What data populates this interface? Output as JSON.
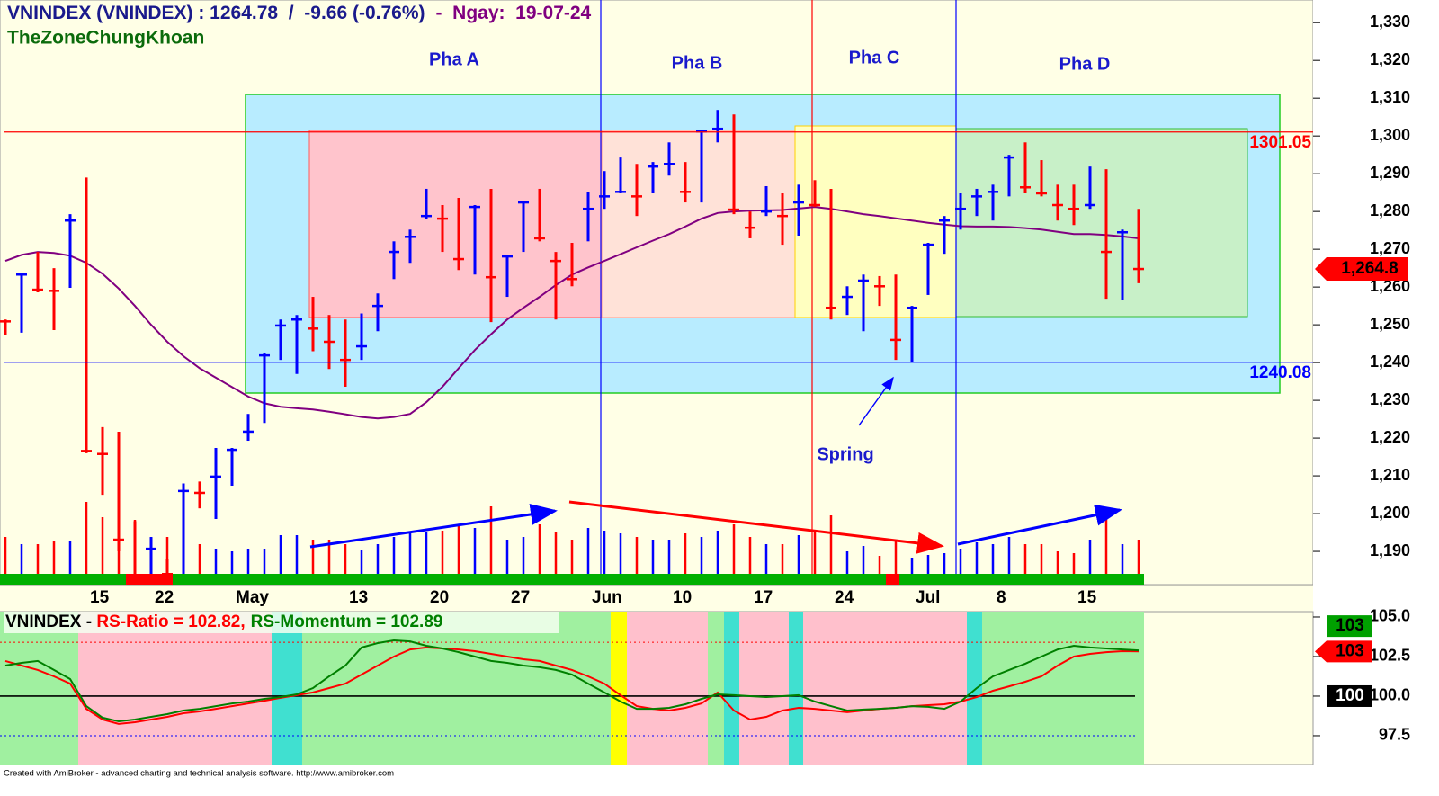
{
  "chart_data": [
    {
      "type": "ohlc",
      "title": "VNINDEX (VNINDEX) : 1264.78  /  -9.66 (-0.76%)",
      "title_date": "-  Ngay:  19-07-24",
      "subtitle": "TheZoneChungKhoan",
      "categories": [
        null,
        null,
        null,
        null,
        null,
        "15",
        null,
        null,
        null,
        "22",
        null,
        null,
        null,
        null,
        "May",
        null,
        null,
        null,
        null,
        null,
        null,
        "13",
        null,
        null,
        null,
        null,
        "20",
        null,
        null,
        null,
        null,
        "27",
        null,
        null,
        null,
        null,
        "Jun",
        null,
        null,
        null,
        null,
        "10",
        null,
        null,
        null,
        null,
        "17",
        null,
        null,
        null,
        null,
        "24",
        null,
        null,
        null,
        null,
        "Jul",
        null,
        null,
        null,
        null,
        "8",
        null,
        null,
        null,
        null,
        "15",
        null,
        null,
        null,
        null
      ],
      "high": [
        1251.4,
        1263.3,
        1269.3,
        1265.0,
        1279.3,
        1289.0,
        1222.9,
        1221.7,
        1198.0,
        1193.8,
        1188.0,
        1208.0,
        1208.5,
        1217.4,
        1217.4,
        1226.4,
        1242.4,
        1251.4,
        1252.6,
        1257.4,
        1252.6,
        1251.4,
        1253.0,
        1258.3,
        1272.1,
        1275.2,
        1286.0,
        1281.7,
        1283.6,
        1281.7,
        1286.0,
        1268.1,
        1282.4,
        1286.0,
        1269.3,
        1271.7,
        1285.2,
        1290.7,
        1294.3,
        1292.6,
        1293.1,
        1298.3,
        1293.1,
        1301.4,
        1306.9,
        1305.7,
        1280.0,
        1286.7,
        1284.8,
        1287.1,
        1288.3,
        1286.0,
        1260.2,
        1263.3,
        1262.9,
        1263.3,
        1255.0,
        1271.7,
        1278.8,
        1284.8,
        1286.0,
        1287.1,
        1295.0,
        1298.3,
        1293.6,
        1287.1,
        1287.1,
        1291.9,
        1291.2,
        1275.2,
        1280.7
      ],
      "low": [
        1247.4,
        1247.9,
        1258.6,
        1248.6,
        1259.8,
        1216.0,
        1205.0,
        1190.0,
        1170.0,
        1175.0,
        1172.0,
        1183.0,
        1201.4,
        1198.6,
        1207.4,
        1219.3,
        1224.0,
        1240.7,
        1237.0,
        1243.0,
        1238.3,
        1233.6,
        1240.7,
        1248.3,
        1262.1,
        1266.4,
        1278.1,
        1269.3,
        1264.5,
        1263.3,
        1250.7,
        1257.4,
        1269.3,
        1272.1,
        1251.4,
        1260.2,
        1272.1,
        1280.7,
        1284.8,
        1278.8,
        1284.8,
        1289.5,
        1282.4,
        1282.4,
        1298.3,
        1279.3,
        1272.9,
        1278.8,
        1271.2,
        1273.6,
        1281.2,
        1251.4,
        1252.6,
        1248.3,
        1255.0,
        1240.7,
        1240.2,
        1257.9,
        1268.8,
        1275.2,
        1278.8,
        1277.6,
        1284.0,
        1284.8,
        1284.0,
        1277.6,
        1276.4,
        1280.7,
        1256.9,
        1256.7,
        1261.0
      ],
      "close": [
        1250.9,
        1263.3,
        1259.3,
        1259.0,
        1277.6,
        1216.6,
        1215.8,
        1193.1,
        1174.9,
        1190.7,
        1184.0,
        1206.0,
        1205.5,
        1209.8,
        1216.9,
        1221.7,
        1241.9,
        1249.8,
        1251.4,
        1249.0,
        1245.5,
        1240.7,
        1244.3,
        1255.0,
        1269.3,
        1273.3,
        1278.8,
        1278.1,
        1267.4,
        1281.2,
        1262.6,
        1268.1,
        1282.4,
        1272.9,
        1266.9,
        1262.1,
        1280.7,
        1284.0,
        1285.2,
        1284.0,
        1291.9,
        1292.6,
        1285.2,
        1301.2,
        1301.9,
        1280.5,
        1275.7,
        1280.0,
        1278.8,
        1282.4,
        1281.7,
        1254.5,
        1257.4,
        1261.7,
        1260.2,
        1246.0,
        1254.5,
        1271.2,
        1277.6,
        1280.7,
        1284.0,
        1285.2,
        1294.3,
        1286.4,
        1284.8,
        1281.7,
        1280.7,
        1281.7,
        1269.3,
        1274.5,
        1264.78
      ],
      "ma": [
        1266.9,
        1268.5,
        1269.3,
        1269.0,
        1268.3,
        1266.4,
        1263.5,
        1259.6,
        1255.0,
        1250.0,
        1245.5,
        1241.7,
        1238.5,
        1236.0,
        1233.5,
        1231.0,
        1229.2,
        1228.3,
        1227.9,
        1227.6,
        1227.0,
        1226.3,
        1225.6,
        1225.2,
        1225.6,
        1226.4,
        1229.5,
        1233.6,
        1238.5,
        1243.3,
        1247.5,
        1251.4,
        1254.5,
        1257.4,
        1260.5,
        1263.3,
        1265.2,
        1266.9,
        1268.7,
        1270.5,
        1272.3,
        1274.0,
        1276.0,
        1278.1,
        1279.6,
        1280.0,
        1280.2,
        1280.3,
        1280.4,
        1280.8,
        1281.2,
        1280.7,
        1280.0,
        1279.3,
        1278.8,
        1278.2,
        1277.6,
        1277.0,
        1276.5,
        1276.1,
        1276.0,
        1276.0,
        1275.9,
        1275.6,
        1275.2,
        1274.6,
        1274.0,
        1274.0,
        1273.8,
        1273.4,
        1272.9
      ],
      "volume": [
        41,
        33,
        33,
        36,
        36,
        80,
        63,
        43,
        60,
        41,
        41,
        48,
        33,
        28,
        25,
        28,
        28,
        43,
        43,
        38,
        38,
        33,
        26,
        33,
        41,
        46,
        46,
        48,
        53,
        51,
        75,
        38,
        41,
        55,
        46,
        38,
        51,
        48,
        45,
        41,
        38,
        38,
        45,
        41,
        48,
        55,
        41,
        33,
        33,
        43,
        48,
        65,
        25,
        31,
        20,
        38,
        18,
        21,
        23,
        28,
        35,
        33,
        41,
        33,
        33,
        25,
        23,
        38,
        65,
        33,
        38
      ],
      "volume_lim": [
        0,
        200
      ],
      "up_color": "#0000ff",
      "down_color": "#ff0000",
      "ma_color": "#800080",
      "ylim": [
        1181.2,
        1336
      ],
      "yticks": [
        {
          "value": 1190,
          "label": "1,190"
        },
        {
          "value": 1200,
          "label": "1,200"
        },
        {
          "value": 1210,
          "label": "1,210"
        },
        {
          "value": 1220,
          "label": "1,220"
        },
        {
          "value": 1230,
          "label": "1,230"
        },
        {
          "value": 1240,
          "label": "1,240"
        },
        {
          "value": 1250,
          "label": "1,250"
        },
        {
          "value": 1260,
          "label": "1,260"
        },
        {
          "value": 1270,
          "label": "1,270"
        },
        {
          "value": 1280,
          "label": "1,280"
        },
        {
          "value": 1290,
          "label": "1,290"
        },
        {
          "value": 1300,
          "label": "1,300"
        },
        {
          "value": 1310,
          "label": "1,310"
        },
        {
          "value": 1320,
          "label": "1,320"
        },
        {
          "value": 1330,
          "label": "1,330"
        }
      ],
      "levels": [
        {
          "value": 1301.05,
          "color": "#ff0000"
        },
        {
          "value": 1240.08,
          "color": "#0000ff"
        }
      ],
      "last_price": {
        "value": 1264.8,
        "label": "1,264.8"
      },
      "annotations": [
        "Pha A",
        "Pha B",
        "Pha C",
        "Pha D",
        "Spring"
      ]
    },
    {
      "type": "line",
      "title": "VNINDEX - ",
      "series": [
        {
          "label": "RS-Ratio = 102.82,",
          "color": "#ff0000",
          "values": [
            102.22,
            101.93,
            101.65,
            101.25,
            100.79,
            99.2,
            98.52,
            98.24,
            98.35,
            98.52,
            98.69,
            98.92,
            99.03,
            99.2,
            99.37,
            99.54,
            99.71,
            99.89,
            100.06,
            100.23,
            100.51,
            100.79,
            101.36,
            101.93,
            102.5,
            102.95,
            103.07,
            103.01,
            102.95,
            102.84,
            102.67,
            102.5,
            102.33,
            102.22,
            101.93,
            101.65,
            101.25,
            100.79,
            100.06,
            99.37,
            99.2,
            99.09,
            99.26,
            99.54,
            100.23,
            99.09,
            98.52,
            98.69,
            99.09,
            99.26,
            99.2,
            99.09,
            98.98,
            99.09,
            99.2,
            99.26,
            99.37,
            99.43,
            99.49,
            99.66,
            99.94,
            100.34,
            100.62,
            100.91,
            101.25,
            101.93,
            102.5,
            102.67,
            102.78,
            102.84,
            102.82
          ]
        },
        {
          "label": "RS-Momentum = 102.89",
          "color": "#008000",
          "values": [
            101.93,
            102.1,
            102.22,
            101.65,
            101.08,
            99.37,
            98.64,
            98.41,
            98.52,
            98.69,
            98.86,
            99.09,
            99.2,
            99.37,
            99.54,
            99.66,
            99.83,
            99.94,
            100.11,
            100.51,
            101.25,
            101.93,
            103.07,
            103.35,
            103.52,
            103.46,
            103.18,
            103.01,
            102.78,
            102.5,
            102.22,
            102.1,
            101.93,
            101.82,
            101.65,
            101.36,
            100.79,
            100.23,
            99.66,
            99.2,
            99.2,
            99.26,
            99.49,
            99.83,
            100.11,
            100.06,
            100.0,
            99.94,
            100.0,
            100.06,
            99.66,
            99.37,
            99.09,
            99.15,
            99.2,
            99.26,
            99.37,
            99.32,
            99.2,
            99.66,
            100.51,
            101.25,
            101.65,
            102.05,
            102.5,
            102.95,
            103.18,
            103.07,
            103.01,
            102.95,
            102.89
          ]
        }
      ],
      "ylim": [
        95.68,
        105.34
      ],
      "yticks": [
        {
          "value": 97.5,
          "label": "97.5"
        },
        {
          "value": 100,
          "label": "100.0"
        },
        {
          "value": 102.5,
          "label": "102.5"
        },
        {
          "value": 105,
          "label": "105.0"
        }
      ],
      "levels": [
        {
          "value": 100,
          "color": "#000000",
          "dashed": false
        },
        {
          "value": 103.4,
          "color": "#ff0000",
          "dashed": true
        },
        {
          "value": 97.5,
          "color": "#0000ff",
          "dashed": true
        }
      ],
      "end_labels": [
        {
          "value": 102.89,
          "label": "103",
          "color": "#00a000"
        },
        {
          "value": 102.82,
          "label": "103",
          "color": "#ff0000"
        },
        {
          "value": 100,
          "label": "100",
          "color": "#000000"
        }
      ]
    }
  ],
  "footer": "Created with AmiBroker - advanced charting and technical analysis software. http://www.amibroker.com"
}
